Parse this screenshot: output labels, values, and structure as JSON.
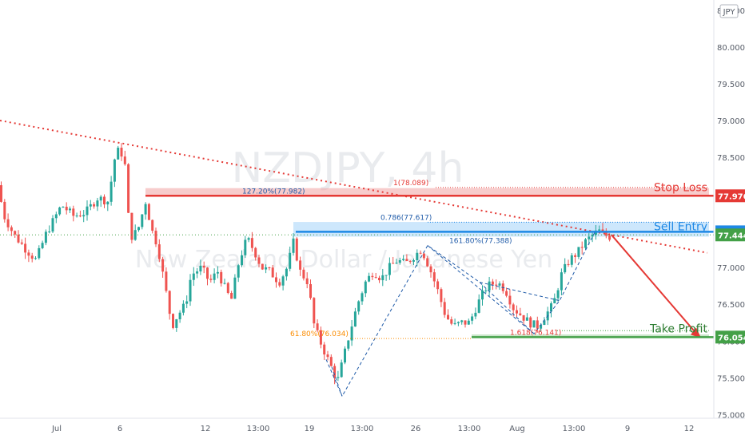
{
  "chart_data": {
    "type": "candlestick",
    "symbol": "NZDJPY, 4h",
    "description": "New Zealand Dollar / Japanese Yen",
    "currency": "JPY",
    "x_ticks": [
      "Jul",
      "6",
      "12",
      "13:00",
      "19",
      "13:00",
      "26",
      "13:00",
      "Aug",
      "13:00",
      "9",
      "12"
    ],
    "y_ticks": [
      "80.500",
      "80.000",
      "79.500",
      "79.000",
      "78.500",
      "78.000",
      "77.500",
      "77.000",
      "76.500",
      "76.000",
      "75.500",
      "75.000"
    ],
    "ylim": [
      74.95,
      80.65
    ],
    "price_path": [
      [
        0,
        78.12
      ],
      [
        8,
        77.7
      ],
      [
        20,
        77.45
      ],
      [
        35,
        77.25
      ],
      [
        48,
        77.1
      ],
      [
        60,
        77.45
      ],
      [
        80,
        77.85
      ],
      [
        95,
        77.7
      ],
      [
        110,
        77.75
      ],
      [
        125,
        77.95
      ],
      [
        138,
        77.9
      ],
      [
        148,
        78.6
      ],
      [
        155,
        78.55
      ],
      [
        160,
        78.35
      ],
      [
        165,
        77.4
      ],
      [
        175,
        77.5
      ],
      [
        185,
        77.9
      ],
      [
        193,
        77.5
      ],
      [
        200,
        77.3
      ],
      [
        210,
        76.7
      ],
      [
        218,
        76.2
      ],
      [
        225,
        76.35
      ],
      [
        235,
        76.5
      ],
      [
        242,
        76.9
      ],
      [
        255,
        77.0
      ],
      [
        265,
        76.8
      ],
      [
        275,
        76.95
      ],
      [
        285,
        76.7
      ],
      [
        292,
        76.55
      ],
      [
        302,
        77.1
      ],
      [
        312,
        77.4
      ],
      [
        322,
        77.2
      ],
      [
        330,
        77.0
      ],
      [
        340,
        76.95
      ],
      [
        352,
        76.8
      ],
      [
        362,
        77.0
      ],
      [
        370,
        77.35
      ],
      [
        378,
        76.95
      ],
      [
        388,
        76.8
      ],
      [
        396,
        76.2
      ],
      [
        405,
        75.95
      ],
      [
        415,
        75.7
      ],
      [
        425,
        75.45
      ],
      [
        432,
        75.75
      ],
      [
        440,
        76.1
      ],
      [
        450,
        76.5
      ],
      [
        460,
        76.8
      ],
      [
        470,
        76.95
      ],
      [
        480,
        76.85
      ],
      [
        490,
        77.0
      ],
      [
        500,
        77.1
      ],
      [
        510,
        77.05
      ],
      [
        520,
        77.15
      ],
      [
        530,
        77.25
      ],
      [
        540,
        77.0
      ],
      [
        550,
        76.7
      ],
      [
        560,
        76.35
      ],
      [
        570,
        76.2
      ],
      [
        580,
        76.25
      ],
      [
        590,
        76.25
      ],
      [
        600,
        76.5
      ],
      [
        612,
        76.75
      ],
      [
        625,
        76.8
      ],
      [
        635,
        76.7
      ],
      [
        645,
        76.45
      ],
      [
        655,
        76.35
      ],
      [
        665,
        76.25
      ],
      [
        675,
        76.2
      ],
      [
        685,
        76.35
      ],
      [
        695,
        76.5
      ],
      [
        705,
        76.9
      ],
      [
        715,
        77.1
      ],
      [
        725,
        77.2
      ],
      [
        735,
        77.35
      ],
      [
        745,
        77.45
      ],
      [
        752,
        77.5
      ],
      [
        758,
        77.45
      ],
      [
        765,
        77.42
      ]
    ],
    "series": [
      {
        "name": "",
        "kind": "trendline",
        "style": "dotted",
        "color": "#e53935",
        "points": [
          [
            0,
            79.0
          ],
          [
            885,
            77.2
          ]
        ]
      },
      {
        "name": "",
        "kind": "projection",
        "style": "solid",
        "color": "#e53935",
        "points": [
          [
            765,
            77.444
          ],
          [
            875,
            76.054
          ]
        ]
      }
    ],
    "levels": [
      {
        "label": "Stop Loss",
        "value": 77.976,
        "tag": "77.976",
        "color": "#e53935",
        "fib": "1(78.089)",
        "fib_value": 78.089,
        "zone_label": "127.20%(77.982)"
      },
      {
        "label": "Sell Entry",
        "value": 77.486,
        "tag": "77.486",
        "color": "#1e88e5",
        "fib": "0.786(77.617)",
        "fib_value": 77.617,
        "zone_label": "161.80%(77.388)"
      },
      {
        "label": "",
        "value": 77.444,
        "tag": "77.444",
        "color": "#43a047"
      },
      {
        "label": "Take Profit",
        "value": 76.054,
        "tag": "76.054",
        "color": "#43a047",
        "fib": "1.618(76.141)",
        "fib_value": 76.141,
        "zone_label": "61.80%(76.034)"
      }
    ],
    "grid": false
  }
}
